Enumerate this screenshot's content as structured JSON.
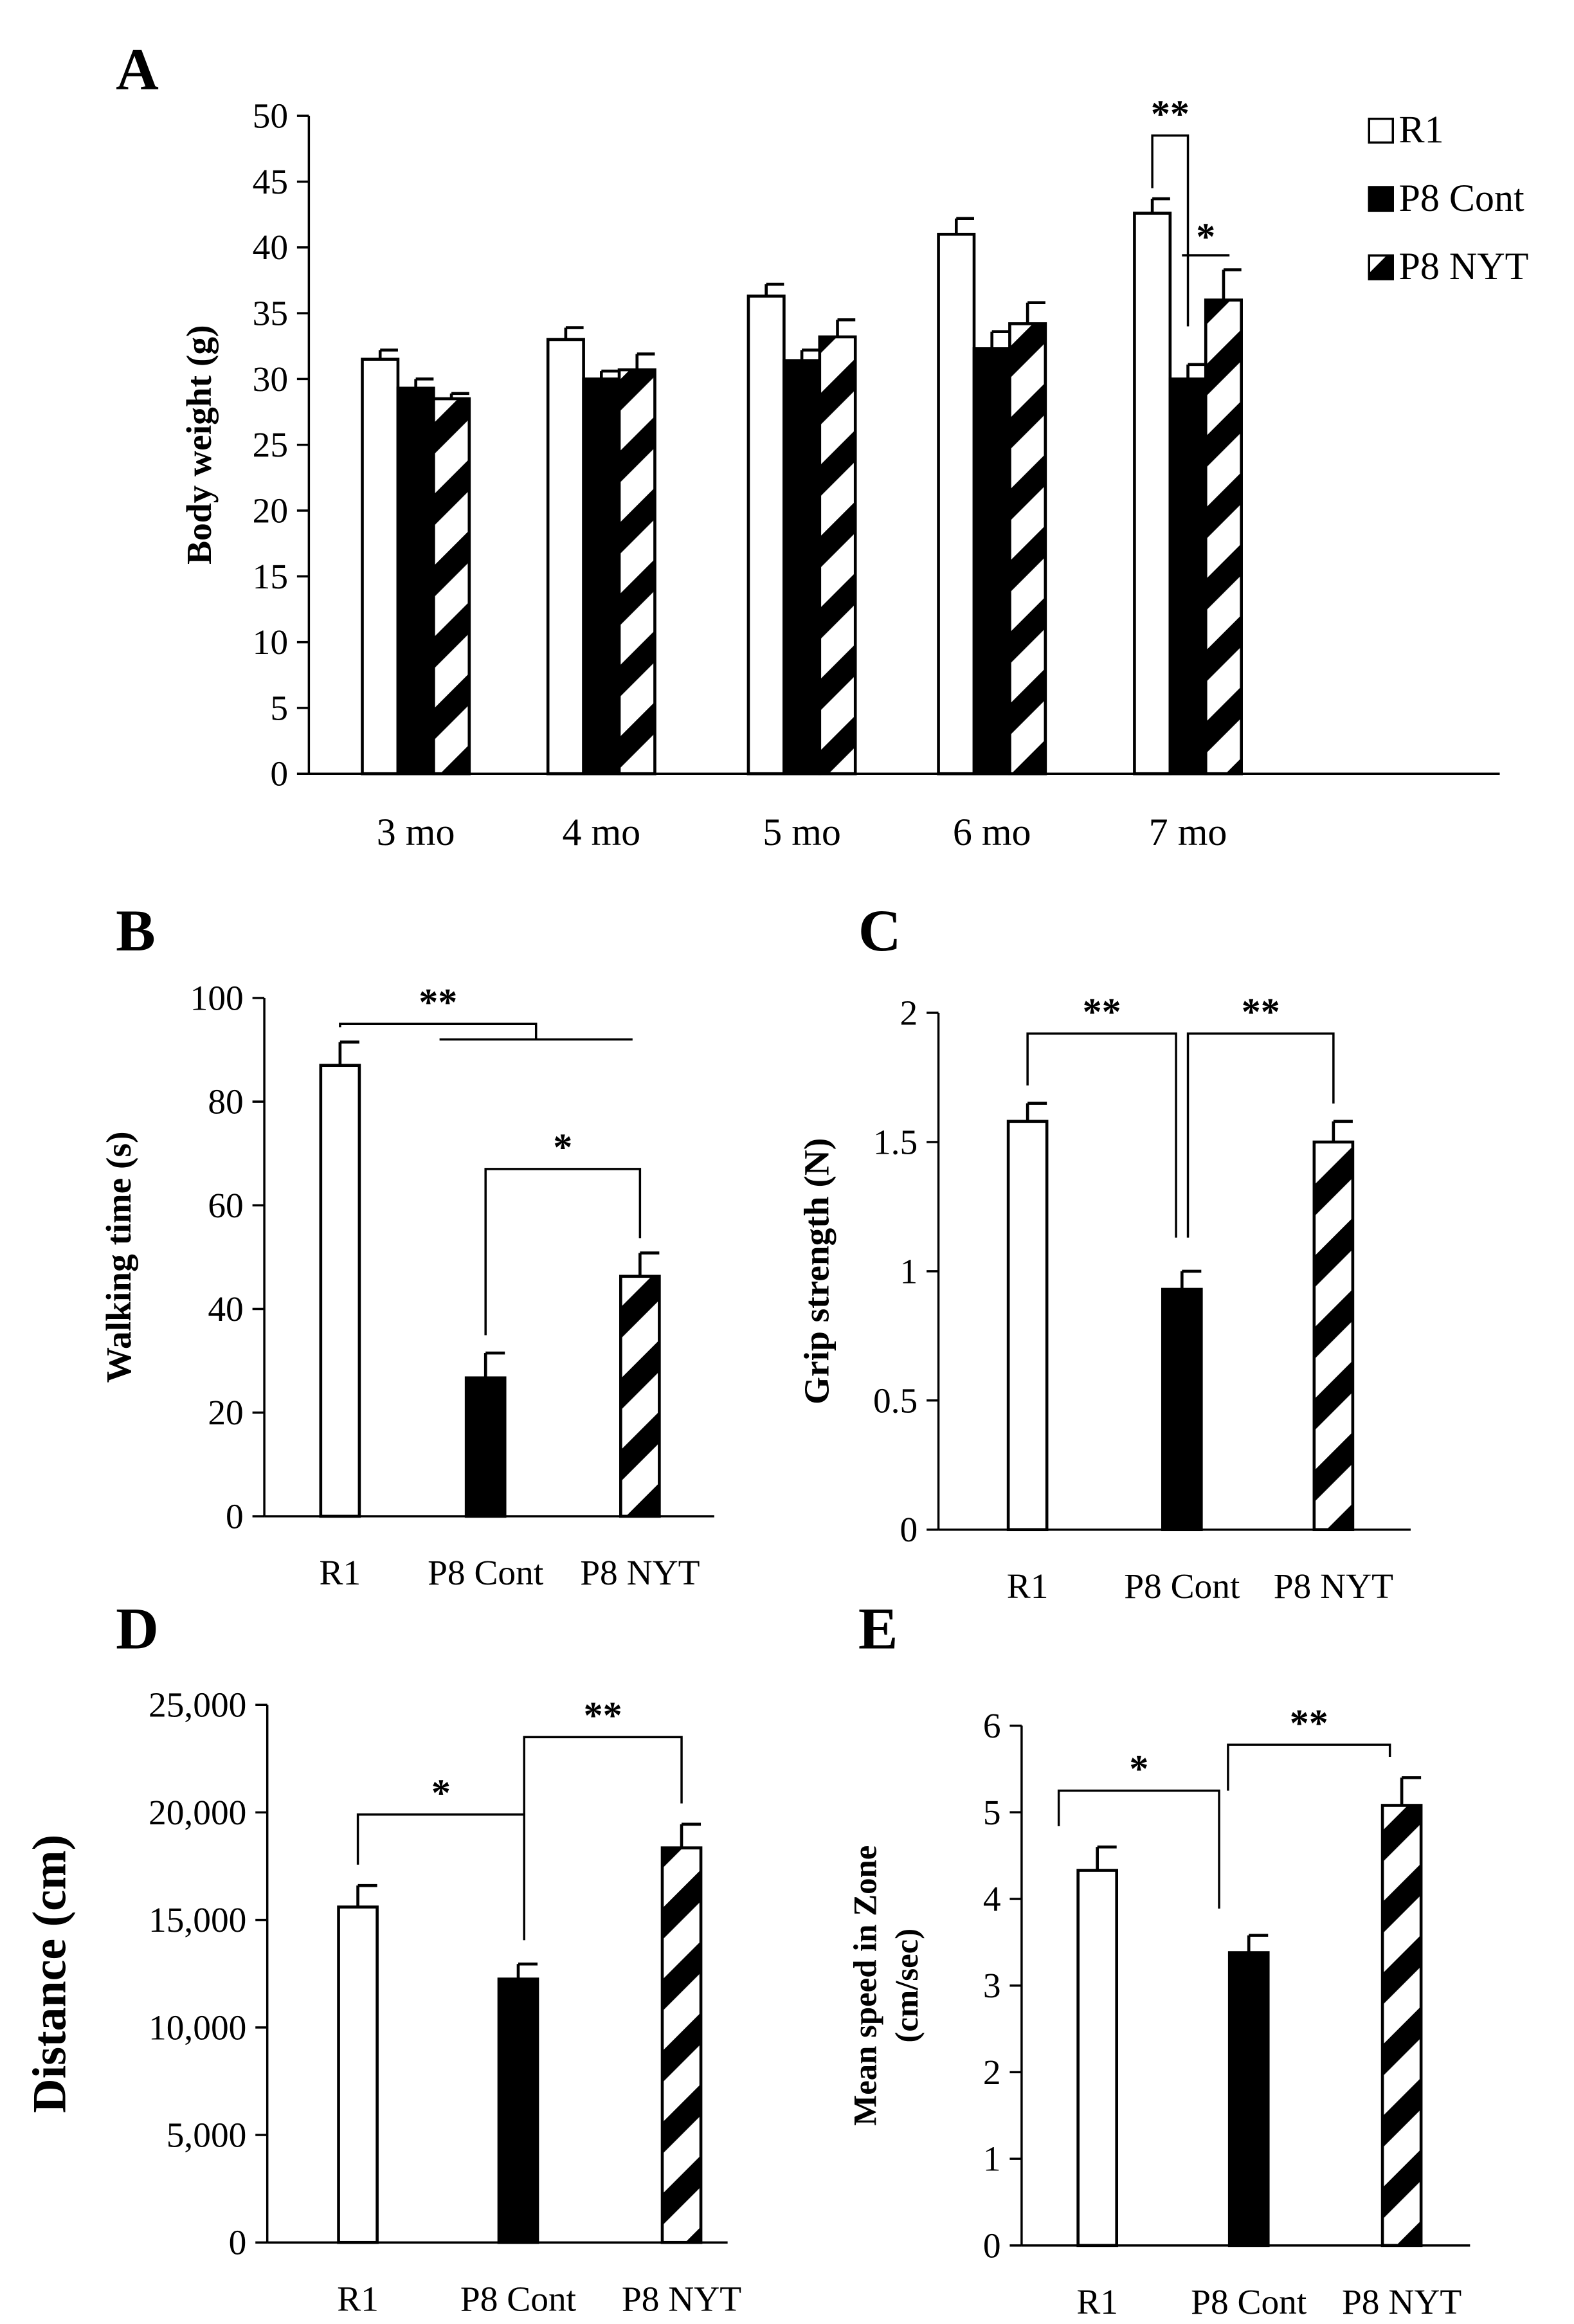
{
  "patterns": {
    "R1": "open",
    "P8 Cont": "solid",
    "P8 NYT": "hatched"
  },
  "colors": {
    "ink": "#000000",
    "paper": "#ffffff"
  },
  "chart_data": [
    {
      "panel": "A",
      "type": "bar",
      "ylabel": "Body weight (g)",
      "categories": [
        "3 mo",
        "4 mo",
        "5 mo",
        "6 mo",
        "7 mo"
      ],
      "ylim": [
        0,
        50
      ],
      "yticks": [
        "0",
        "5",
        "10",
        "15",
        "20",
        "25",
        "30",
        "35",
        "40",
        "45",
        "50"
      ],
      "series": [
        {
          "name": "R1",
          "values": [
            31.5,
            33.0,
            36.3,
            41.0,
            42.6
          ],
          "errors": [
            0.7,
            0.9,
            0.9,
            1.2,
            1.1
          ]
        },
        {
          "name": "P8 Cont",
          "values": [
            29.3,
            30.0,
            31.4,
            32.3,
            30.0
          ],
          "errors": [
            0.7,
            0.6,
            0.8,
            1.3,
            1.1
          ]
        },
        {
          "name": "P8 NYT",
          "values": [
            28.5,
            30.7,
            33.2,
            34.2,
            36.0
          ],
          "errors": [
            0.4,
            1.2,
            1.3,
            1.6,
            2.3
          ]
        }
      ],
      "legend": {
        "position": "top-right",
        "entries": [
          "R1",
          "P8 Cont",
          "P8 NYT"
        ]
      },
      "annotations": [
        {
          "text": "**",
          "between": [
            "R1",
            "P8 Cont"
          ],
          "category": "7 mo"
        },
        {
          "text": "*",
          "between": [
            "P8 Cont",
            "P8 NYT"
          ],
          "category": "7 mo"
        }
      ]
    },
    {
      "panel": "B",
      "type": "bar",
      "ylabel": "Walking time (s)",
      "categories": [
        "R1",
        "P8 Cont",
        "P8 NYT"
      ],
      "ylim": [
        0,
        100
      ],
      "yticks": [
        "0",
        "20",
        "40",
        "60",
        "80",
        "100"
      ],
      "values": [
        87,
        26.7,
        46.3
      ],
      "errors": [
        4.5,
        4.8,
        4.5
      ],
      "annotations": [
        {
          "text": "**",
          "from": "R1",
          "to": [
            "P8 Cont",
            "P8 NYT"
          ]
        },
        {
          "text": "*",
          "from": "P8 Cont",
          "to": "P8 NYT"
        }
      ]
    },
    {
      "panel": "C",
      "type": "bar",
      "ylabel": "Grip strength (N)",
      "categories": [
        "R1",
        "P8 Cont",
        "P8 NYT"
      ],
      "ylim": [
        0,
        2
      ],
      "yticks": [
        "0",
        "0.5",
        "1",
        "1.5",
        "2"
      ],
      "values": [
        1.58,
        0.93,
        1.5
      ],
      "errors": [
        0.07,
        0.07,
        0.08
      ],
      "annotations": [
        {
          "text": "**",
          "from": "R1",
          "to": "P8 Cont"
        },
        {
          "text": "**",
          "from": "P8 Cont",
          "to": "P8 NYT"
        }
      ]
    },
    {
      "panel": "D",
      "type": "bar",
      "ylabel": "Distance  (cm)",
      "categories": [
        "R1",
        "P8 Cont",
        "P8 NYT"
      ],
      "ylim": [
        0,
        25000
      ],
      "yticks": [
        "0",
        "5,000",
        "10,000",
        "15,000",
        "20,000",
        "25,000"
      ],
      "values": [
        15600,
        12250,
        18350
      ],
      "errors": [
        1000,
        700,
        1100
      ],
      "annotations": [
        {
          "text": "*",
          "from": "R1",
          "to": "P8 Cont"
        },
        {
          "text": "**",
          "from": "P8 Cont",
          "to": "P8 NYT"
        }
      ]
    },
    {
      "panel": "E",
      "type": "bar",
      "ylabel": [
        "Mean speed in Zone",
        "(cm/sec)"
      ],
      "categories": [
        "R1",
        "P8 Cont",
        "P8 NYT"
      ],
      "ylim": [
        0,
        6
      ],
      "yticks": [
        "0",
        "1",
        "2",
        "3",
        "4",
        "5",
        "6"
      ],
      "values": [
        4.33,
        3.38,
        5.08
      ],
      "errors": [
        0.27,
        0.2,
        0.32
      ],
      "annotations": [
        {
          "text": "*",
          "from": "R1",
          "to": "P8 Cont"
        },
        {
          "text": "**",
          "from": "P8 Cont",
          "to": "P8 NYT"
        }
      ]
    }
  ]
}
